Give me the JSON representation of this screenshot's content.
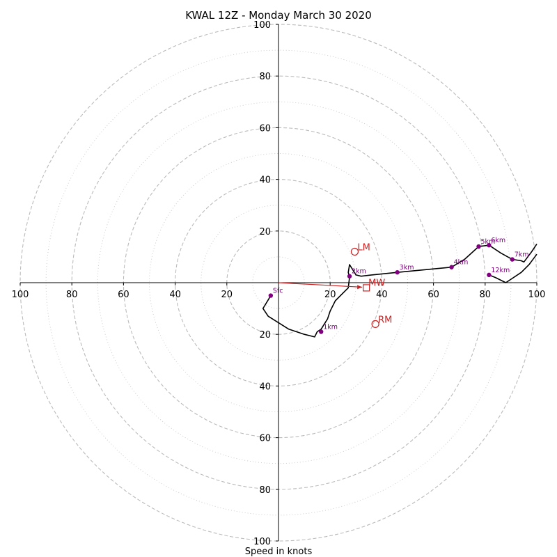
{
  "chart_data": {
    "type": "hodograph",
    "title": "KWAL 12Z - Monday March 30 2020",
    "xlabel": "Speed in knots",
    "units": "knots",
    "xlim": [
      -100,
      100
    ],
    "ylim": [
      -100,
      100
    ],
    "rings": {
      "major": [
        20,
        40,
        60,
        80,
        100
      ],
      "minor": [
        10,
        30,
        50,
        70,
        90
      ]
    },
    "tick_labels": {
      "x_left": [
        "100",
        "80",
        "60",
        "40",
        "20"
      ],
      "x_right": [
        "20",
        "40",
        "60",
        "80",
        "100"
      ],
      "y_top": [
        "20",
        "40",
        "60",
        "80",
        "100"
      ],
      "y_bottom": [
        "20",
        "40",
        "60",
        "80",
        "100"
      ]
    },
    "profile": [
      [
        -3,
        -5
      ],
      [
        -6,
        -10
      ],
      [
        -4,
        -13
      ],
      [
        4,
        -18
      ],
      [
        10,
        -20
      ],
      [
        14,
        -21
      ],
      [
        15,
        -19
      ],
      [
        16.5,
        -18
      ],
      [
        19,
        -14
      ],
      [
        20,
        -11
      ],
      [
        22,
        -7
      ],
      [
        24,
        -5
      ],
      [
        26,
        -3
      ],
      [
        27,
        -2
      ],
      [
        27.5,
        2
      ],
      [
        27,
        4
      ],
      [
        27.5,
        7
      ],
      [
        30,
        3
      ],
      [
        32,
        2.5
      ],
      [
        36,
        3
      ],
      [
        46,
        4
      ],
      [
        67,
        6
      ],
      [
        72,
        9
      ],
      [
        77.5,
        14
      ],
      [
        81.5,
        14.5
      ],
      [
        86,
        11.5
      ],
      [
        90.5,
        9
      ],
      [
        94,
        8.5
      ],
      [
        95,
        8
      ],
      [
        98,
        12
      ],
      [
        100,
        15
      ]
    ],
    "profile_tail": [
      [
        100,
        11
      ],
      [
        97,
        7
      ],
      [
        94,
        4
      ],
      [
        88,
        0
      ],
      [
        84,
        2
      ],
      [
        81.5,
        3
      ]
    ],
    "altitude_markers": [
      {
        "label": "Sfc",
        "x": -3,
        "y": -5
      },
      {
        "label": "1km",
        "x": 16.5,
        "y": -19
      },
      {
        "label": "2km",
        "x": 27.5,
        "y": 2.5
      },
      {
        "label": "3km",
        "x": 46,
        "y": 4
      },
      {
        "label": "4km",
        "x": 67,
        "y": 6
      },
      {
        "label": "5km",
        "x": 77.5,
        "y": 14
      },
      {
        "label": "6km",
        "x": 81.5,
        "y": 14.5
      },
      {
        "label": "7km",
        "x": 90.5,
        "y": 9
      },
      {
        "label": "12km",
        "x": 81.5,
        "y": 3
      }
    ],
    "storm_motion": {
      "LM": {
        "label": "LM",
        "x": 29.5,
        "y": 12
      },
      "RM": {
        "label": "RM",
        "x": 37.5,
        "y": -16
      },
      "MW": {
        "label": "MW",
        "x": 34,
        "y": -2
      }
    },
    "colors": {
      "profile": "#000000",
      "markers": "#800080",
      "storm": "#cc2222",
      "grid": "#bbbbbb",
      "axes": "#000000"
    }
  }
}
